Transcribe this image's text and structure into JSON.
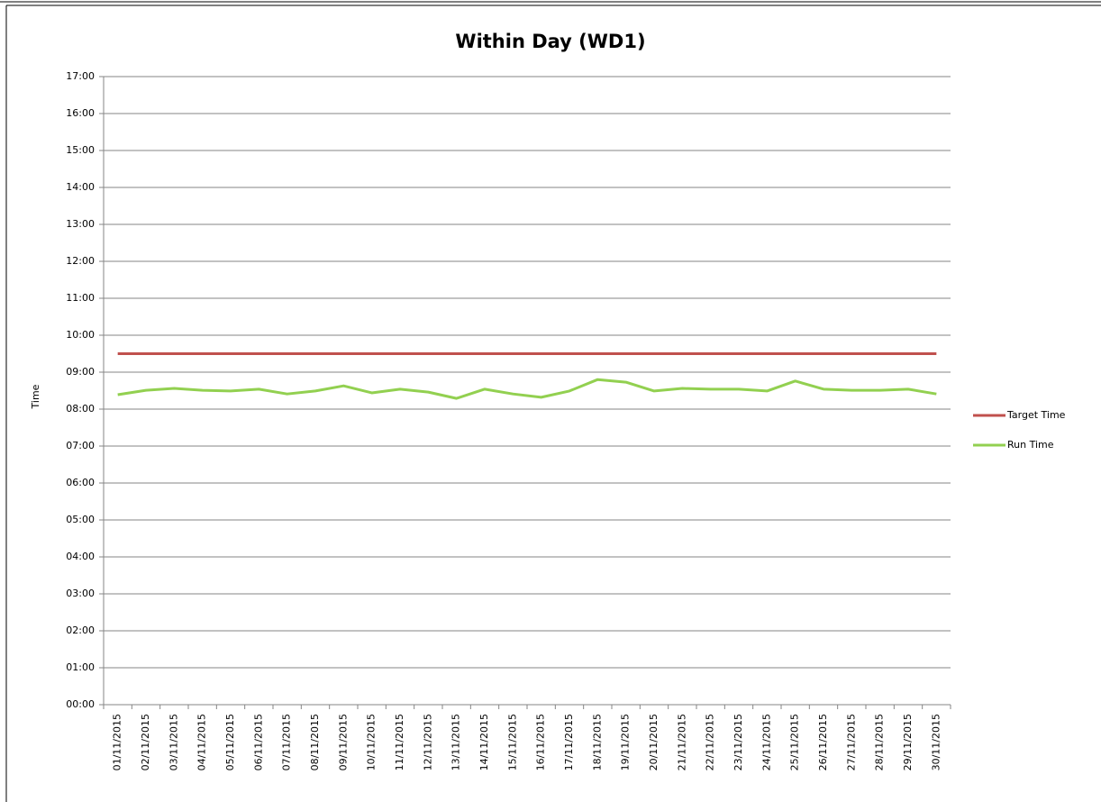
{
  "chart_data": {
    "type": "line",
    "title": "Within Day (WD1)",
    "y_label": "Time",
    "categories": [
      "01/11/2015",
      "02/11/2015",
      "03/11/2015",
      "04/11/2015",
      "05/11/2015",
      "06/11/2015",
      "07/11/2015",
      "08/11/2015",
      "09/11/2015",
      "10/11/2015",
      "11/11/2015",
      "12/11/2015",
      "13/11/2015",
      "14/11/2015",
      "15/11/2015",
      "16/11/2015",
      "17/11/2015",
      "18/11/2015",
      "19/11/2015",
      "20/11/2015",
      "21/11/2015",
      "22/11/2015",
      "23/11/2015",
      "24/11/2015",
      "25/11/2015",
      "26/11/2015",
      "27/11/2015",
      "28/11/2015",
      "29/11/2015",
      "30/11/2015"
    ],
    "series": [
      {
        "name": "Target Time",
        "color": "#c0504d",
        "values": [
          9.5,
          9.5,
          9.5,
          9.5,
          9.5,
          9.5,
          9.5,
          9.5,
          9.5,
          9.5,
          9.5,
          9.5,
          9.5,
          9.5,
          9.5,
          9.5,
          9.5,
          9.5,
          9.5,
          9.5,
          9.5,
          9.5,
          9.5,
          9.5,
          9.5,
          9.5,
          9.5,
          9.5,
          9.5,
          9.5
        ]
      },
      {
        "name": "Run Time",
        "color": "#92d050",
        "values": [
          8.39,
          8.51,
          8.56,
          8.51,
          8.49,
          8.54,
          8.41,
          8.49,
          8.63,
          8.44,
          8.54,
          8.46,
          8.29,
          8.54,
          8.41,
          8.32,
          8.49,
          8.8,
          8.73,
          8.49,
          8.56,
          8.54,
          8.54,
          8.49,
          8.76,
          8.54,
          8.51,
          8.51,
          8.54,
          8.41
        ]
      }
    ],
    "ylim": [
      0,
      17
    ],
    "yticks": [
      {
        "value": 0,
        "label": "00:00"
      },
      {
        "value": 1,
        "label": "01:00"
      },
      {
        "value": 2,
        "label": "02:00"
      },
      {
        "value": 3,
        "label": "03:00"
      },
      {
        "value": 4,
        "label": "04:00"
      },
      {
        "value": 5,
        "label": "05:00"
      },
      {
        "value": 6,
        "label": "06:00"
      },
      {
        "value": 7,
        "label": "07:00"
      },
      {
        "value": 8,
        "label": "08:00"
      },
      {
        "value": 9,
        "label": "09:00"
      },
      {
        "value": 10,
        "label": "10:00"
      },
      {
        "value": 11,
        "label": "11:00"
      },
      {
        "value": 12,
        "label": "12:00"
      },
      {
        "value": 13,
        "label": "13:00"
      },
      {
        "value": 14,
        "label": "14:00"
      },
      {
        "value": 15,
        "label": "15:00"
      },
      {
        "value": 16,
        "label": "16:00"
      },
      {
        "value": 17,
        "label": "17:00"
      }
    ],
    "grid": true,
    "legend": "right"
  }
}
